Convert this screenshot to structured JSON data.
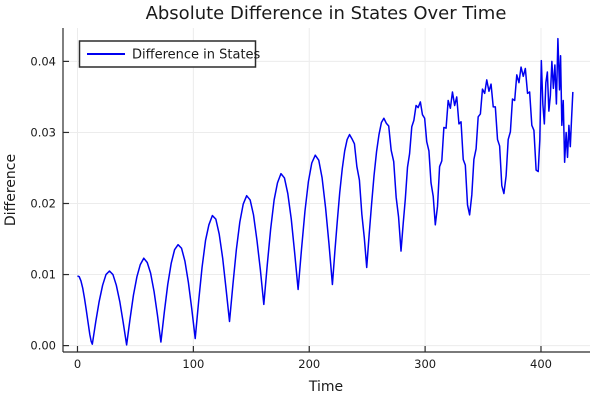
{
  "chart_data": {
    "type": "line",
    "title": "Absolute Difference in States Over Time",
    "xlabel": "Time",
    "ylabel": "Difference",
    "xlim": [
      -12.5,
      442.3
    ],
    "ylim": [
      -0.0009,
      0.0447
    ],
    "grid": true,
    "xticks": {
      "values": [
        0,
        100,
        200,
        300,
        400
      ],
      "labels": [
        "0",
        "100",
        "200",
        "300",
        "400"
      ]
    },
    "yticks": {
      "values": [
        0,
        0.01,
        0.02,
        0.03,
        0.04
      ],
      "labels": [
        "0.00",
        "0.01",
        "0.02",
        "0.03",
        "0.04"
      ]
    },
    "colors": {
      "series": "#0000f0",
      "spine": "#2b2b2b",
      "grid": "#ececec",
      "text": "#1a1a1a",
      "legend_border": "#2b2b2b",
      "background": "#ffffff"
    },
    "legend": {
      "position": "top-left",
      "entries": [
        {
          "label": "Difference in States",
          "color": "#0000f0"
        }
      ]
    },
    "series": [
      {
        "name": "Difference in States",
        "color": "#0000f0",
        "points": [
          [
            0,
            0.0098
          ],
          [
            1.5,
            0.0097
          ],
          [
            3,
            0.0091
          ],
          [
            4.5,
            0.0081
          ],
          [
            6,
            0.0067
          ],
          [
            7.5,
            0.0051
          ],
          [
            9,
            0.0034
          ],
          [
            10.6,
            0.0016
          ],
          [
            11.8,
            0.0006
          ],
          [
            12.8,
            0.0002
          ],
          [
            15.8,
            0.0034
          ],
          [
            18.7,
            0.0062
          ],
          [
            21.7,
            0.0085
          ],
          [
            24.6,
            0.01
          ],
          [
            27.6,
            0.0105
          ],
          [
            30.6,
            0.01
          ],
          [
            33.5,
            0.0085
          ],
          [
            36.5,
            0.0062
          ],
          [
            39.4,
            0.0033
          ],
          [
            42.4,
            0.0001
          ],
          [
            45.4,
            0.0038
          ],
          [
            48.3,
            0.0071
          ],
          [
            51.3,
            0.0097
          ],
          [
            54.2,
            0.0114
          ],
          [
            57.2,
            0.0123
          ],
          [
            60.2,
            0.0117
          ],
          [
            63.1,
            0.0102
          ],
          [
            66.1,
            0.0076
          ],
          [
            69,
            0.0043
          ],
          [
            72,
            0.0005
          ],
          [
            75,
            0.0048
          ],
          [
            77.9,
            0.0086
          ],
          [
            80.9,
            0.0116
          ],
          [
            83.8,
            0.0135
          ],
          [
            86.8,
            0.0142
          ],
          [
            89.8,
            0.0137
          ],
          [
            92.7,
            0.0119
          ],
          [
            95.7,
            0.0089
          ],
          [
            98.6,
            0.0052
          ],
          [
            101.6,
            0.001
          ],
          [
            104.6,
            0.0063
          ],
          [
            107.5,
            0.011
          ],
          [
            110.5,
            0.0148
          ],
          [
            113.4,
            0.017
          ],
          [
            116.4,
            0.0183
          ],
          [
            119.4,
            0.0178
          ],
          [
            122.3,
            0.0157
          ],
          [
            125.3,
            0.0123
          ],
          [
            128.2,
            0.008
          ],
          [
            131.2,
            0.0034
          ],
          [
            134.2,
            0.0087
          ],
          [
            137.1,
            0.0135
          ],
          [
            140.1,
            0.0174
          ],
          [
            143,
            0.0199
          ],
          [
            146,
            0.0211
          ],
          [
            149,
            0.0205
          ],
          [
            151.9,
            0.0184
          ],
          [
            154.9,
            0.0148
          ],
          [
            157.8,
            0.0107
          ],
          [
            160.8,
            0.0058
          ],
          [
            163.8,
            0.0114
          ],
          [
            166.7,
            0.0164
          ],
          [
            169.7,
            0.0205
          ],
          [
            172.6,
            0.0229
          ],
          [
            175.6,
            0.0242
          ],
          [
            178.6,
            0.0236
          ],
          [
            181.5,
            0.0214
          ],
          [
            184.5,
            0.0178
          ],
          [
            187.4,
            0.0131
          ],
          [
            190.4,
            0.0079
          ],
          [
            193.4,
            0.0137
          ],
          [
            196.3,
            0.0189
          ],
          [
            199.3,
            0.0231
          ],
          [
            202.2,
            0.0257
          ],
          [
            205.2,
            0.0268
          ],
          [
            208.2,
            0.0261
          ],
          [
            211.1,
            0.0236
          ],
          [
            214.1,
            0.0194
          ],
          [
            217,
            0.0144
          ],
          [
            220,
            0.0086
          ],
          [
            222.1,
            0.0132
          ],
          [
            224.2,
            0.0175
          ],
          [
            226.3,
            0.0215
          ],
          [
            228.5,
            0.0249
          ],
          [
            230.6,
            0.0274
          ],
          [
            232.7,
            0.029
          ],
          [
            234.8,
            0.0297
          ],
          [
            236.9,
            0.0291
          ],
          [
            239,
            0.0284
          ],
          [
            241.1,
            0.0252
          ],
          [
            243.3,
            0.0233
          ],
          [
            245.4,
            0.0185
          ],
          [
            247.5,
            0.0152
          ],
          [
            249.6,
            0.011
          ],
          [
            251.7,
            0.0156
          ],
          [
            253.8,
            0.0199
          ],
          [
            255.9,
            0.0239
          ],
          [
            258.1,
            0.0273
          ],
          [
            260.2,
            0.0297
          ],
          [
            262.3,
            0.0314
          ],
          [
            264.4,
            0.032
          ],
          [
            266.5,
            0.0313
          ],
          [
            268.6,
            0.0309
          ],
          [
            270.7,
            0.0275
          ],
          [
            272.9,
            0.0259
          ],
          [
            275,
            0.0209
          ],
          [
            277.1,
            0.0181
          ],
          [
            279.2,
            0.0133
          ],
          [
            281.1,
            0.0172
          ],
          [
            282.9,
            0.0206
          ],
          [
            284.8,
            0.0251
          ],
          [
            286.6,
            0.027
          ],
          [
            288.5,
            0.0308
          ],
          [
            290.3,
            0.0317
          ],
          [
            292.2,
            0.0338
          ],
          [
            294,
            0.0335
          ],
          [
            295.9,
            0.0343
          ],
          [
            297.7,
            0.0325
          ],
          [
            299.6,
            0.032
          ],
          [
            301.4,
            0.0287
          ],
          [
            303.3,
            0.0274
          ],
          [
            305.1,
            0.0229
          ],
          [
            307,
            0.021
          ],
          [
            308.8,
            0.017
          ],
          [
            310.7,
            0.0196
          ],
          [
            312.5,
            0.0252
          ],
          [
            314.4,
            0.026
          ],
          [
            316.2,
            0.0307
          ],
          [
            318.1,
            0.0306
          ],
          [
            319.9,
            0.0345
          ],
          [
            321.8,
            0.0334
          ],
          [
            323.6,
            0.0357
          ],
          [
            325.5,
            0.0338
          ],
          [
            327.3,
            0.035
          ],
          [
            329.2,
            0.0312
          ],
          [
            331,
            0.0315
          ],
          [
            332.9,
            0.0262
          ],
          [
            334.7,
            0.0254
          ],
          [
            336.6,
            0.0198
          ],
          [
            338.4,
            0.0184
          ],
          [
            340.3,
            0.0212
          ],
          [
            342.1,
            0.0262
          ],
          [
            344,
            0.0277
          ],
          [
            345.8,
            0.0322
          ],
          [
            347.7,
            0.0326
          ],
          [
            349.5,
            0.0361
          ],
          [
            351.4,
            0.0355
          ],
          [
            353.2,
            0.0374
          ],
          [
            355.1,
            0.0358
          ],
          [
            356.9,
            0.0368
          ],
          [
            358.8,
            0.0336
          ],
          [
            360.6,
            0.0336
          ],
          [
            362.5,
            0.029
          ],
          [
            364.3,
            0.0281
          ],
          [
            366.2,
            0.0225
          ],
          [
            368,
            0.0214
          ],
          [
            369.9,
            0.0239
          ],
          [
            371.7,
            0.029
          ],
          [
            373.6,
            0.0301
          ],
          [
            375.4,
            0.0347
          ],
          [
            377.3,
            0.0345
          ],
          [
            379.1,
            0.0381
          ],
          [
            381,
            0.037
          ],
          [
            382.8,
            0.0392
          ],
          [
            384.7,
            0.0379
          ],
          [
            386.5,
            0.039
          ],
          [
            388.4,
            0.0355
          ],
          [
            390.2,
            0.0357
          ],
          [
            392.1,
            0.031
          ],
          [
            393.9,
            0.0303
          ],
          [
            395.8,
            0.0247
          ],
          [
            397.6,
            0.0245
          ],
          [
            399,
            0.029
          ],
          [
            400.3,
            0.0401
          ],
          [
            401.6,
            0.034
          ],
          [
            402.9,
            0.0312
          ],
          [
            404.2,
            0.037
          ],
          [
            405.5,
            0.0385
          ],
          [
            406.8,
            0.033
          ],
          [
            408.1,
            0.0352
          ],
          [
            409.4,
            0.04
          ],
          [
            410.7,
            0.0362
          ],
          [
            412,
            0.0395
          ],
          [
            413.3,
            0.034
          ],
          [
            414.6,
            0.0432
          ],
          [
            416,
            0.036
          ],
          [
            416.9,
            0.0408
          ],
          [
            418,
            0.031
          ],
          [
            419.2,
            0.0345
          ],
          [
            420.4,
            0.0258
          ],
          [
            421.7,
            0.03
          ],
          [
            422.9,
            0.0265
          ],
          [
            424.1,
            0.031
          ],
          [
            425.3,
            0.028
          ],
          [
            426.4,
            0.032
          ],
          [
            427.5,
            0.0357
          ]
        ]
      }
    ]
  }
}
